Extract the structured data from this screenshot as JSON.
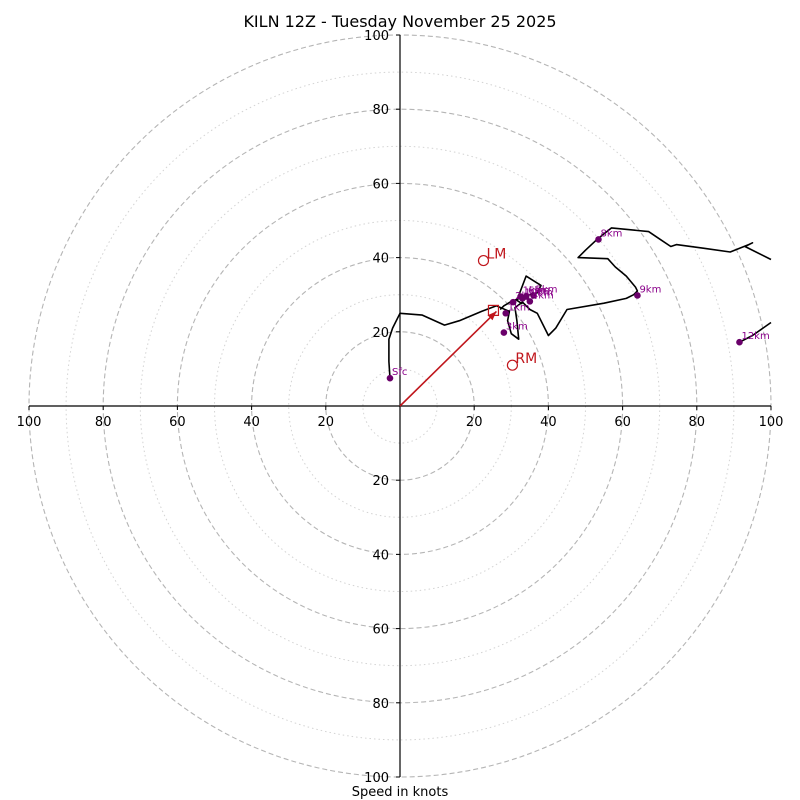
{
  "chart_data": {
    "type": "hodograph",
    "title": "KILN 12Z - Tuesday November 25 2025",
    "xlabel": "Speed in knots",
    "range": 100,
    "rings_major": [
      20,
      40,
      60,
      80,
      100
    ],
    "rings_minor": [
      10,
      30,
      50,
      70,
      90
    ],
    "ticks": [
      {
        "v": -100,
        "label": "100"
      },
      {
        "v": -80,
        "label": "80"
      },
      {
        "v": -60,
        "label": "60"
      },
      {
        "v": -40,
        "label": "40"
      },
      {
        "v": -20,
        "label": "20"
      },
      {
        "v": 20,
        "label": "20"
      },
      {
        "v": 40,
        "label": "40"
      },
      {
        "v": 60,
        "label": "60"
      },
      {
        "v": 80,
        "label": "80"
      },
      {
        "v": 100,
        "label": "100"
      }
    ],
    "trace": [
      [
        -2.7,
        7.5
      ],
      [
        -3,
        12
      ],
      [
        -3,
        18
      ],
      [
        -2,
        21
      ],
      [
        0,
        25
      ],
      [
        6,
        24.5
      ],
      [
        12,
        21.8
      ],
      [
        16,
        23
      ],
      [
        22,
        25.5
      ],
      [
        26,
        27
      ],
      [
        29.5,
        25.5
      ],
      [
        29,
        23
      ],
      [
        30,
        19.5
      ],
      [
        32,
        18
      ],
      [
        31.5,
        23
      ],
      [
        31,
        26.5
      ],
      [
        33,
        28
      ],
      [
        35,
        26
      ],
      [
        37,
        25
      ],
      [
        39,
        21
      ],
      [
        40,
        19
      ],
      [
        42,
        21
      ],
      [
        45,
        26
      ],
      [
        55,
        27.7
      ],
      [
        61,
        29
      ],
      [
        63,
        30
      ],
      [
        64,
        31
      ],
      [
        63.5,
        32
      ],
      [
        61,
        35
      ],
      [
        58,
        37.5
      ],
      [
        56,
        39.7
      ],
      [
        48,
        40
      ],
      [
        50,
        42
      ],
      [
        53,
        44.8
      ],
      [
        57,
        48
      ],
      [
        67,
        47
      ],
      [
        70,
        45
      ],
      [
        73,
        43
      ],
      [
        74.5,
        43.5
      ],
      [
        82,
        42.5
      ],
      [
        89,
        41.5
      ],
      [
        94,
        43.5
      ],
      [
        95,
        44
      ],
      [
        93,
        43
      ],
      [
        100,
        39.5
      ]
    ],
    "trace2": [
      [
        33,
        27.5
      ],
      [
        31.5,
        28.5
      ],
      [
        34,
        35
      ],
      [
        38,
        32.5
      ],
      [
        37,
        30.5
      ],
      [
        35,
        30
      ],
      [
        30,
        28.2
      ],
      [
        28,
        27
      ],
      [
        27,
        26
      ]
    ],
    "trace3": [
      [
        91.5,
        17.2
      ],
      [
        95,
        19
      ],
      [
        100,
        22.5
      ]
    ],
    "height_points": [
      {
        "label": "Sfc",
        "u": -2.7,
        "v": 7.5
      },
      {
        "label": "1km",
        "u": 28.5,
        "v": 25
      },
      {
        "label": "3km",
        "u": 28,
        "v": 19.8
      },
      {
        "label": "2km",
        "u": 30.5,
        "v": 28
      },
      {
        "label": "1km",
        "u": 32.5,
        "v": 29.5
      },
      {
        "label": "10km",
        "u": 33,
        "v": 29
      },
      {
        "label": "6km",
        "u": 34,
        "v": 29.5
      },
      {
        "label": "5km",
        "u": 36,
        "v": 29.8
      },
      {
        "label": "4km",
        "u": 35,
        "v": 28.2
      },
      {
        "label": "9km",
        "u": 64,
        "v": 29.8
      },
      {
        "label": "8km",
        "u": 53.5,
        "v": 44.9
      },
      {
        "label": "12km",
        "u": 91.5,
        "v": 17.2
      }
    ],
    "storm_motion": [
      {
        "label": "LM",
        "u": 22.5,
        "v": 39.2
      },
      {
        "label": "RM",
        "u": 30.3,
        "v": 11
      }
    ],
    "mean_wind": {
      "label": "",
      "u": 26,
      "v": 25.5
    },
    "shear_vector": {
      "from": [
        0,
        0
      ],
      "to": [
        26,
        25.5
      ]
    },
    "colors": {
      "trace": "#000000",
      "points": "#6a006a",
      "point_labels": "#8a008a",
      "storm": "#c0161c",
      "rings_major": "#b5b5b5",
      "rings_minor": "#d3d3d3"
    }
  }
}
